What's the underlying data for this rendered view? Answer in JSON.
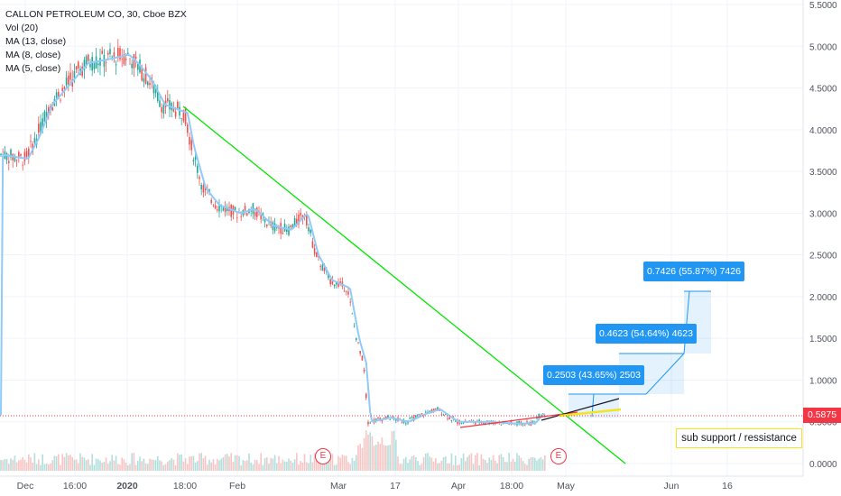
{
  "legend": {
    "title": "CALLON PETROLEUM CO, 30, Cboe BZX",
    "vol": "Vol (20)",
    "ma13": "MA (13, close)",
    "ma8": "MA (8, close)",
    "ma5": "MA (5, close)"
  },
  "current_price": "0.5875",
  "note": "sub support / ressistance",
  "projections": [
    {
      "label": "0.2503 (43.65%) 2503"
    },
    {
      "label": "0.4623 (54.64%) 4623"
    },
    {
      "label": "0.7426 (55.87%) 7426"
    }
  ],
  "events": [
    {
      "label": "E"
    },
    {
      "label": "E"
    }
  ],
  "colors": {
    "candle_up": "#26a69a",
    "candle_down": "#ef5350",
    "trendline": "#00e600",
    "projection": "#2196f3",
    "price_line": "#f23645",
    "ma": "#90caf9",
    "highlight": "#f5e51a"
  },
  "chart_data": {
    "type": "candlestick",
    "title": "CALLON PETROLEUM CO, 30, Cboe BZX",
    "y_ticks": [
      "5.5000",
      "5.0000",
      "4.5000",
      "4.0000",
      "3.5000",
      "3.0000",
      "2.5000",
      "2.0000",
      "1.5000",
      "1.0000",
      "0.5000",
      "0.0000"
    ],
    "y_range": [
      0,
      5.5
    ],
    "x_ticks": [
      "Dec",
      "16:00",
      "2020",
      "18:00",
      "Feb",
      "Mar",
      "17",
      "Apr",
      "18:00",
      "May",
      "Jun",
      "16"
    ],
    "current_price": 0.5875,
    "price_path": [
      {
        "x": "Dec",
        "y": 3.7
      },
      {
        "x": "16:00",
        "y": 4.5
      },
      {
        "x": "2020",
        "y": 4.9
      },
      {
        "x": "18:00",
        "y": 4.2
      },
      {
        "x": "Feb",
        "y": 3.0
      },
      {
        "x": "Mar",
        "y": 2.2
      },
      {
        "x": "17",
        "y": 0.55
      },
      {
        "x": "Apr",
        "y": 0.5
      },
      {
        "x": "18:00",
        "y": 0.5
      }
    ]
  }
}
